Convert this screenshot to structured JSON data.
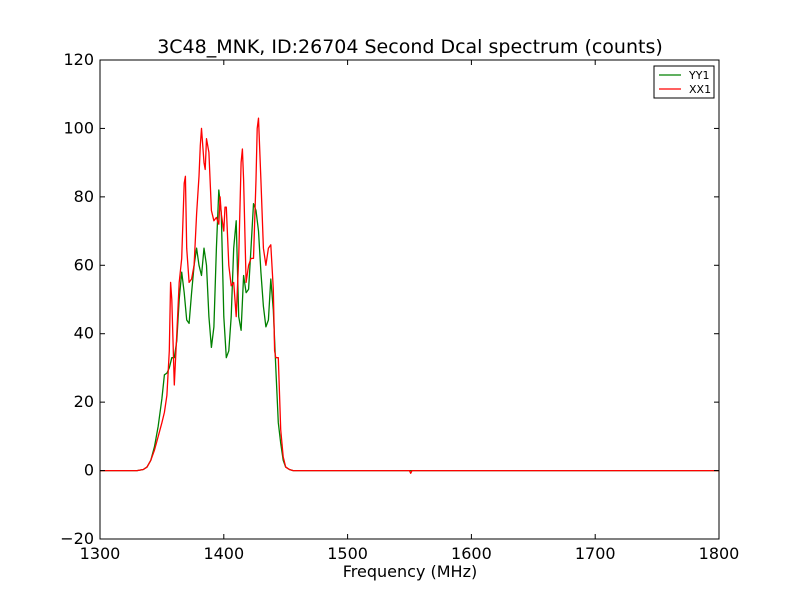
{
  "chart_data": {
    "type": "line",
    "title": "3C48_MNK, ID:26704 Second Dcal spectrum (counts)",
    "xlabel": "Frequency (MHz)",
    "ylabel": "",
    "xlim": [
      1300,
      1800
    ],
    "ylim": [
      -20,
      120
    ],
    "xticks": [
      1300,
      1400,
      1500,
      1600,
      1700,
      1800
    ],
    "yticks": [
      -20,
      0,
      20,
      40,
      60,
      80,
      100,
      120
    ],
    "grid": false,
    "legend_position": "top-right",
    "series": [
      {
        "name": "YY1",
        "color": "#008000",
        "x": [
          1300,
          1330,
          1335,
          1338,
          1341,
          1344,
          1347,
          1350,
          1352,
          1354,
          1356,
          1358,
          1360,
          1362,
          1364,
          1366,
          1368,
          1370,
          1372,
          1374,
          1376,
          1378,
          1380,
          1382,
          1384,
          1386,
          1388,
          1390,
          1392,
          1394,
          1396,
          1398,
          1400,
          1402,
          1404,
          1406,
          1408,
          1410,
          1412,
          1414,
          1416,
          1418,
          1420,
          1422,
          1424,
          1426,
          1428,
          1430,
          1432,
          1434,
          1436,
          1438,
          1440,
          1442,
          1444,
          1446,
          1448,
          1450,
          1453,
          1456,
          1460,
          1465,
          1470,
          1500,
          1550,
          1600,
          1650,
          1700,
          1750,
          1800
        ],
        "y": [
          0,
          0,
          0.3,
          1,
          3,
          7,
          13,
          21,
          28,
          28.5,
          30,
          33,
          33,
          38,
          50,
          58,
          52,
          44,
          43,
          52,
          60,
          65,
          60,
          57,
          65,
          60,
          45,
          36,
          42,
          65,
          82,
          75,
          45,
          33,
          35,
          45,
          65,
          73,
          45,
          41,
          57,
          52,
          53,
          65,
          78,
          76,
          70,
          58,
          48,
          42,
          44,
          56,
          47,
          30,
          14,
          8,
          3,
          1,
          0.3,
          0,
          0,
          0,
          0,
          0,
          0,
          0,
          0,
          0,
          0,
          0
        ]
      },
      {
        "name": "XX1",
        "color": "#ff0000",
        "x": [
          1300,
          1330,
          1335,
          1338,
          1341,
          1344,
          1347,
          1350,
          1352,
          1354,
          1356,
          1357,
          1358,
          1360,
          1362,
          1364,
          1366,
          1368,
          1369,
          1370,
          1372,
          1374,
          1376,
          1378,
          1380,
          1381,
          1382,
          1384,
          1385,
          1386,
          1388,
          1390,
          1392,
          1394,
          1396,
          1397,
          1398,
          1400,
          1401,
          1402,
          1404,
          1406,
          1408,
          1410,
          1412,
          1414,
          1415,
          1416,
          1418,
          1420,
          1422,
          1424,
          1426,
          1427,
          1428,
          1430,
          1432,
          1434,
          1436,
          1438,
          1440,
          1441,
          1442,
          1444,
          1446,
          1448,
          1450,
          1453,
          1456,
          1460,
          1465,
          1470,
          1500,
          1550,
          1551,
          1552,
          1600,
          1650,
          1700,
          1750,
          1800
        ],
        "y": [
          0,
          0,
          0.3,
          1,
          3,
          6,
          10,
          14,
          17,
          22,
          35,
          55,
          50,
          25,
          40,
          55,
          62,
          84,
          86,
          65,
          55,
          56,
          60,
          75,
          86,
          95,
          100,
          90,
          88,
          97,
          93,
          76,
          73,
          74,
          72,
          80,
          75,
          70,
          77,
          77,
          60,
          54,
          55,
          45,
          62,
          90,
          94,
          85,
          55,
          60,
          62,
          62,
          85,
          100,
          103,
          85,
          65,
          60,
          65,
          66,
          53,
          35,
          33,
          33,
          12,
          4,
          1,
          0.3,
          0,
          0,
          0,
          0,
          0,
          0,
          -0.8,
          0,
          0,
          0,
          0,
          0,
          0
        ]
      }
    ]
  }
}
